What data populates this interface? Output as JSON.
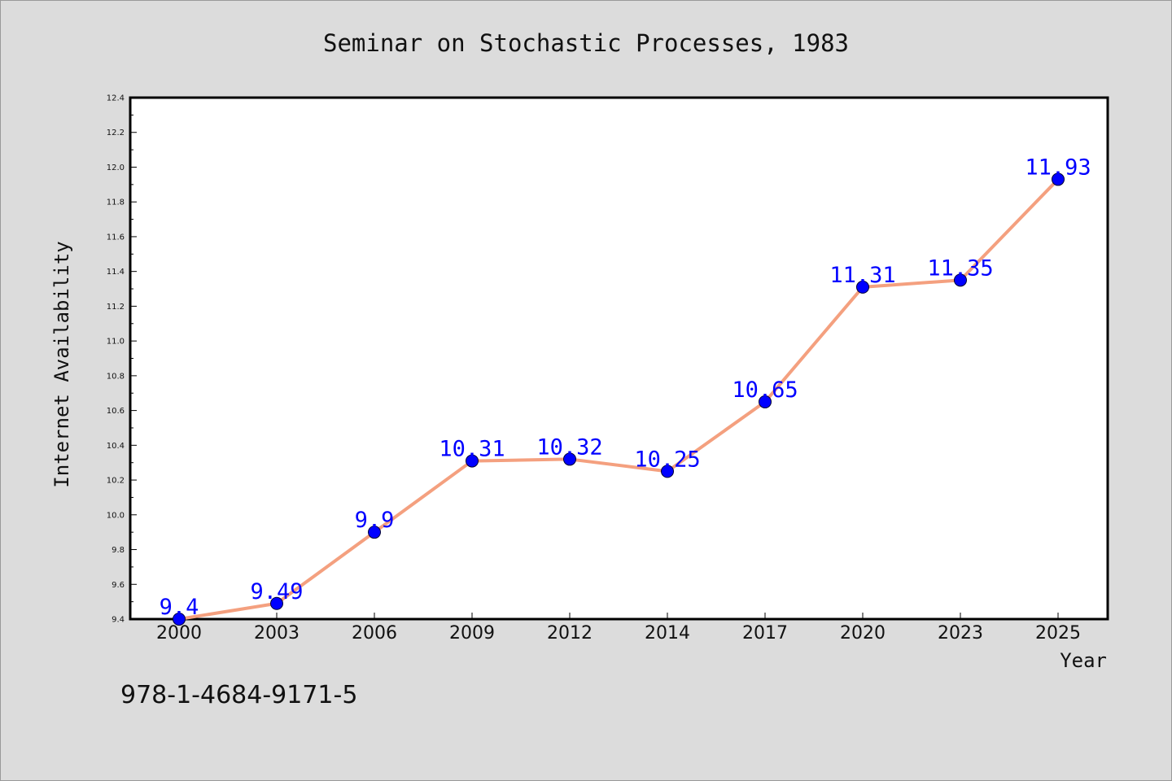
{
  "colors": {
    "background": "#dcdcdc",
    "plot_background": "#ffffff",
    "line": "#f4a07f",
    "marker": "#0000ff",
    "data_label": "#0000ff",
    "text": "#111111"
  },
  "footer_code": "978-1-4684-9171-5",
  "chart_data": {
    "type": "line",
    "title": "Seminar on Stochastic Processes, 1983",
    "xlabel": "Year",
    "ylabel": "Internet Availability",
    "categories": [
      "2000",
      "2003",
      "2006",
      "2009",
      "2012",
      "2014",
      "2017",
      "2020",
      "2023",
      "2025"
    ],
    "series": [
      {
        "values": [
          9.4,
          9.49,
          9.9,
          10.31,
          10.32,
          10.25,
          10.65,
          11.31,
          11.35,
          11.93
        ],
        "data_labels": [
          "9.4",
          "9.49",
          "9.9",
          "10.31",
          "10.32",
          "10.25",
          "10.65",
          "11.31",
          "11.35",
          "11.93"
        ]
      }
    ],
    "ylim": [
      9.4,
      12.4
    ],
    "yticks": [
      "9.4",
      "9.6",
      "9.8",
      "10.0",
      "10.2",
      "10.4",
      "10.6",
      "10.8",
      "11.0",
      "11.2",
      "11.4",
      "11.6",
      "11.8",
      "12.0",
      "12.2",
      "12.4"
    ],
    "grid": false,
    "legend": "none"
  }
}
